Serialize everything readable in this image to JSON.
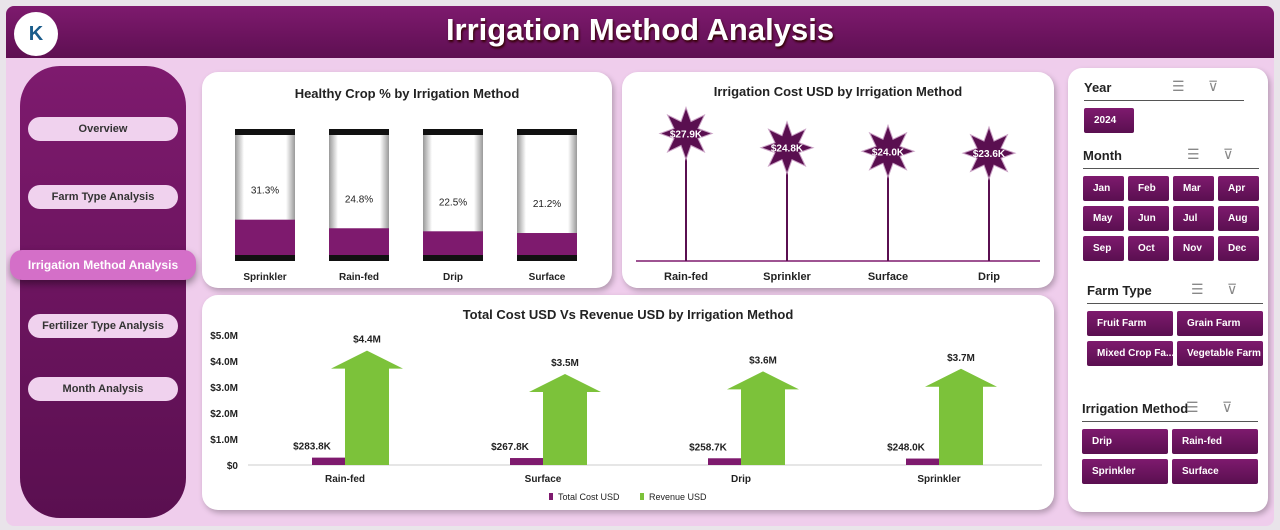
{
  "header": {
    "title": "Irrigation Method Analysis",
    "logo_text": "K"
  },
  "nav": [
    {
      "label": "Overview"
    },
    {
      "label": "Farm Type Analysis"
    },
    {
      "label": "Irrigation Method Analysis",
      "active": true
    },
    {
      "label": "Fertilizer Type Analysis"
    },
    {
      "label": "Month Analysis"
    }
  ],
  "chart_data": [
    {
      "type": "bar",
      "title": "Healthy Crop % by Irrigation Method",
      "categories": [
        "Sprinkler",
        "Rain-fed",
        "Drip",
        "Surface"
      ],
      "values": [
        31.3,
        24.8,
        22.5,
        21.2
      ],
      "labels": [
        "31.3%",
        "24.8%",
        "22.5%",
        "21.2%"
      ],
      "ylim": [
        0,
        100
      ],
      "color": "#7e1a6e"
    },
    {
      "type": "lollipop",
      "title": "Irrigation Cost USD by Irrigation Method",
      "categories": [
        "Rain-fed",
        "Sprinkler",
        "Surface",
        "Drip"
      ],
      "values": [
        27900,
        24800,
        24000,
        23600
      ],
      "labels": [
        "$27.9K",
        "$24.8K",
        "$24.0K",
        "$23.6K"
      ],
      "color": "#5a0f50"
    },
    {
      "type": "bar",
      "title": "Total Cost USD Vs Revenue USD by Irrigation Method",
      "categories": [
        "Rain-fed",
        "Surface",
        "Drip",
        "Sprinkler"
      ],
      "ylim": [
        0,
        5000000
      ],
      "yticks": [
        "$0",
        "$1.0M",
        "$2.0M",
        "$3.0M",
        "$4.0M",
        "$5.0M"
      ],
      "series": [
        {
          "name": "Total Cost USD",
          "values": [
            283800,
            267800,
            258700,
            248000
          ],
          "labels": [
            "$283.8K",
            "$267.8K",
            "$258.7K",
            "$248.0K"
          ],
          "color": "#7e1a6e"
        },
        {
          "name": "Revenue USD",
          "values": [
            4400000,
            3500000,
            3600000,
            3700000
          ],
          "labels": [
            "$4.4M",
            "$3.5M",
            "$3.6M",
            "$3.7M"
          ],
          "color": "#7cc23a"
        }
      ],
      "legend": "bottom"
    }
  ],
  "slicers": {
    "year": {
      "title": "Year",
      "items": [
        "2024"
      ]
    },
    "month": {
      "title": "Month",
      "items": [
        "Jan",
        "Feb",
        "Mar",
        "Apr",
        "May",
        "Jun",
        "Jul",
        "Aug",
        "Sep",
        "Oct",
        "Nov",
        "Dec"
      ]
    },
    "farm_type": {
      "title": "Farm Type",
      "items": [
        "Fruit Farm",
        "Grain Farm",
        "Mixed Crop Fa...",
        "Vegetable Farm"
      ]
    },
    "irrigation": {
      "title": "Irrigation Method",
      "items": [
        "Drip",
        "Rain-fed",
        "Sprinkler",
        "Surface"
      ]
    }
  }
}
